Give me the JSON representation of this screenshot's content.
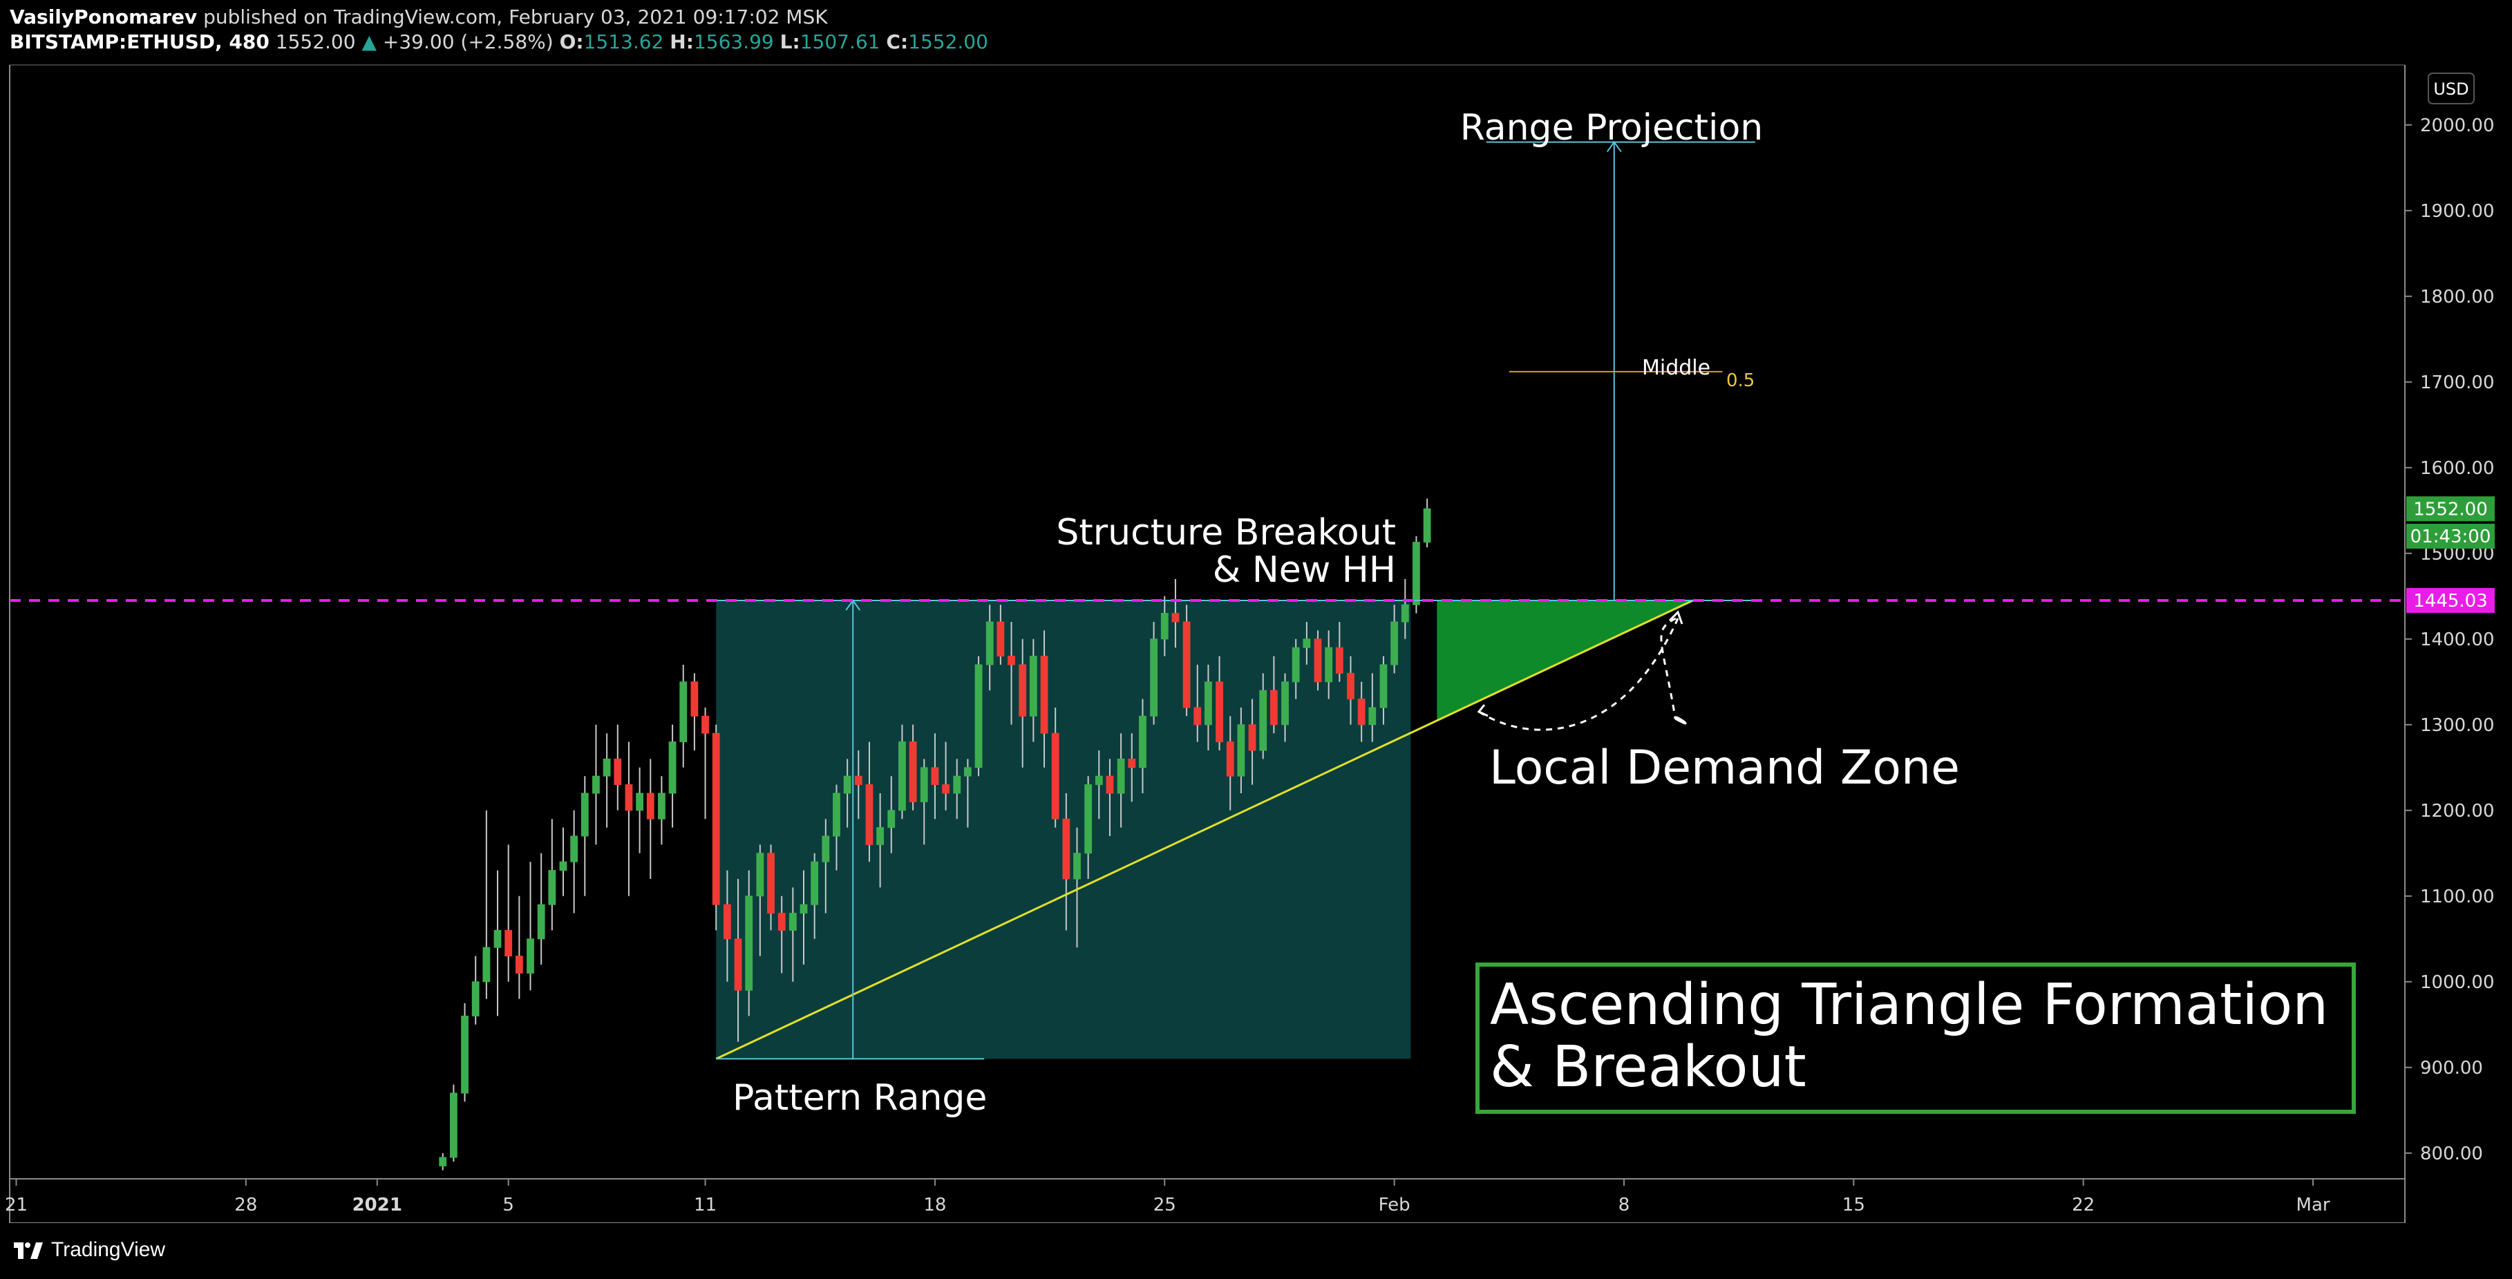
{
  "header": {
    "author": "VasilyPonomarev",
    "published_text": "published on TradingView.com, February 03, 2021 09:17:02 MSK",
    "symbol": "BITSTAMP:ETHUSD, 480",
    "price": "1552.00",
    "change_arrow": "▲",
    "change": "+39.00 (+2.58%)",
    "ohlc": [
      {
        "label": "O:",
        "value": "1513.62"
      },
      {
        "label": "H:",
        "value": "1563.99"
      },
      {
        "label": "L:",
        "value": "1507.61"
      },
      {
        "label": "C:",
        "value": "1552.00"
      }
    ]
  },
  "footer": {
    "brand": "TradingView",
    "logo_icon": "tradingview-logo-icon"
  },
  "colors": {
    "up": "#26a69a",
    "up_body": "#3dae4f",
    "down_body": "#ef3b34",
    "pattern_fill": "#0b3d3c",
    "cyan": "#5bc4d8",
    "magenta": "#e81ee8",
    "yellow": "#e0e02a",
    "demand_green": "#0f8a2a",
    "box_border": "#3aa63a",
    "middle_line": "#c8a51d"
  },
  "chart_data": {
    "type": "candlestick",
    "currency_label": "USD",
    "y_ticks": [
      "2000.00",
      "1900.00",
      "1800.00",
      "1700.00",
      "1600.00",
      "1500.00",
      "1400.00",
      "1300.00",
      "1200.00",
      "1100.00",
      "1000.00",
      "900.00",
      "800.00"
    ],
    "ylim": [
      770,
      2070
    ],
    "x_ticks": [
      {
        "label": "21",
        "x": -21
      },
      {
        "label": "28",
        "x": -14
      },
      {
        "label": "2021",
        "x": -10,
        "bold": true
      },
      {
        "label": "5",
        "x": -6
      },
      {
        "label": "11",
        "x": 0
      },
      {
        "label": "18",
        "x": 7
      },
      {
        "label": "25",
        "x": 14
      },
      {
        "label": "Feb",
        "x": 21
      },
      {
        "label": "8",
        "x": 28
      },
      {
        "label": "15",
        "x": 35
      },
      {
        "label": "22",
        "x": 42
      },
      {
        "label": "Mar",
        "x": 49
      }
    ],
    "xlim": [
      -21.2,
      51.8
    ],
    "x_unit": "days from Jan 11 2021",
    "candles": [
      [
        -8.0,
        785,
        800,
        780,
        795
      ],
      [
        -7.67,
        795,
        880,
        790,
        870
      ],
      [
        -7.33,
        870,
        975,
        860,
        960
      ],
      [
        -7.0,
        960,
        1030,
        950,
        1000
      ],
      [
        -6.67,
        1000,
        1200,
        980,
        1040
      ],
      [
        -6.33,
        1040,
        1130,
        960,
        1060
      ],
      [
        -6.0,
        1060,
        1160,
        1000,
        1030
      ],
      [
        -5.67,
        1030,
        1100,
        980,
        1010
      ],
      [
        -5.33,
        1010,
        1140,
        990,
        1050
      ],
      [
        -5.0,
        1050,
        1150,
        1020,
        1090
      ],
      [
        -4.67,
        1090,
        1190,
        1060,
        1130
      ],
      [
        -4.33,
        1130,
        1180,
        1100,
        1140
      ],
      [
        -4.0,
        1140,
        1200,
        1080,
        1170
      ],
      [
        -3.67,
        1170,
        1240,
        1100,
        1220
      ],
      [
        -3.33,
        1220,
        1300,
        1160,
        1240
      ],
      [
        -3.0,
        1240,
        1290,
        1180,
        1260
      ],
      [
        -2.67,
        1260,
        1300,
        1200,
        1230
      ],
      [
        -2.33,
        1230,
        1280,
        1100,
        1200
      ],
      [
        -2.0,
        1200,
        1250,
        1150,
        1220
      ],
      [
        -1.67,
        1220,
        1260,
        1120,
        1190
      ],
      [
        -1.33,
        1190,
        1240,
        1160,
        1220
      ],
      [
        -1.0,
        1220,
        1300,
        1180,
        1280
      ],
      [
        -0.67,
        1280,
        1370,
        1250,
        1350
      ],
      [
        -0.33,
        1350,
        1360,
        1270,
        1310
      ],
      [
        0.0,
        1310,
        1320,
        1190,
        1290
      ],
      [
        0.33,
        1290,
        1300,
        1060,
        1090
      ],
      [
        0.67,
        1090,
        1130,
        1000,
        1050
      ],
      [
        1.0,
        1050,
        1120,
        930,
        990
      ],
      [
        1.33,
        990,
        1130,
        960,
        1100
      ],
      [
        1.67,
        1100,
        1160,
        1030,
        1150
      ],
      [
        2.0,
        1150,
        1160,
        1060,
        1080
      ],
      [
        2.33,
        1080,
        1100,
        1010,
        1060
      ],
      [
        2.67,
        1060,
        1110,
        1000,
        1080
      ],
      [
        3.0,
        1080,
        1130,
        1020,
        1090
      ],
      [
        3.33,
        1090,
        1150,
        1050,
        1140
      ],
      [
        3.67,
        1140,
        1190,
        1080,
        1170
      ],
      [
        4.0,
        1170,
        1230,
        1130,
        1220
      ],
      [
        4.33,
        1220,
        1260,
        1180,
        1240
      ],
      [
        4.67,
        1240,
        1270,
        1190,
        1230
      ],
      [
        5.0,
        1230,
        1280,
        1140,
        1160
      ],
      [
        5.33,
        1160,
        1220,
        1110,
        1180
      ],
      [
        5.67,
        1180,
        1240,
        1150,
        1200
      ],
      [
        6.0,
        1200,
        1300,
        1190,
        1280
      ],
      [
        6.33,
        1280,
        1300,
        1200,
        1210
      ],
      [
        6.67,
        1210,
        1260,
        1160,
        1250
      ],
      [
        7.0,
        1250,
        1290,
        1190,
        1230
      ],
      [
        7.33,
        1230,
        1280,
        1200,
        1220
      ],
      [
        7.67,
        1220,
        1260,
        1190,
        1240
      ],
      [
        8.0,
        1240,
        1260,
        1180,
        1250
      ],
      [
        8.33,
        1250,
        1380,
        1240,
        1370
      ],
      [
        8.67,
        1370,
        1440,
        1340,
        1420
      ],
      [
        9.0,
        1420,
        1440,
        1370,
        1380
      ],
      [
        9.33,
        1380,
        1420,
        1300,
        1370
      ],
      [
        9.67,
        1370,
        1400,
        1250,
        1310
      ],
      [
        10.0,
        1310,
        1400,
        1280,
        1380
      ],
      [
        10.33,
        1380,
        1410,
        1250,
        1290
      ],
      [
        10.67,
        1290,
        1320,
        1180,
        1190
      ],
      [
        11.0,
        1190,
        1220,
        1060,
        1120
      ],
      [
        11.33,
        1120,
        1180,
        1040,
        1150
      ],
      [
        11.67,
        1150,
        1240,
        1120,
        1230
      ],
      [
        12.0,
        1230,
        1270,
        1190,
        1240
      ],
      [
        12.33,
        1240,
        1260,
        1170,
        1220
      ],
      [
        12.67,
        1220,
        1290,
        1180,
        1260
      ],
      [
        13.0,
        1260,
        1290,
        1210,
        1250
      ],
      [
        13.33,
        1250,
        1330,
        1220,
        1310
      ],
      [
        13.67,
        1310,
        1420,
        1300,
        1400
      ],
      [
        14.0,
        1400,
        1450,
        1380,
        1430
      ],
      [
        14.33,
        1430,
        1470,
        1390,
        1420
      ],
      [
        14.67,
        1420,
        1440,
        1310,
        1320
      ],
      [
        15.0,
        1320,
        1370,
        1280,
        1300
      ],
      [
        15.33,
        1300,
        1370,
        1270,
        1350
      ],
      [
        15.67,
        1350,
        1380,
        1270,
        1280
      ],
      [
        16.0,
        1280,
        1310,
        1200,
        1240
      ],
      [
        16.33,
        1240,
        1320,
        1220,
        1300
      ],
      [
        16.67,
        1300,
        1330,
        1230,
        1270
      ],
      [
        17.0,
        1270,
        1360,
        1260,
        1340
      ],
      [
        17.33,
        1340,
        1380,
        1290,
        1300
      ],
      [
        17.67,
        1300,
        1360,
        1280,
        1350
      ],
      [
        18.0,
        1350,
        1400,
        1330,
        1390
      ],
      [
        18.33,
        1390,
        1420,
        1370,
        1400
      ],
      [
        18.67,
        1400,
        1410,
        1340,
        1350
      ],
      [
        19.0,
        1350,
        1410,
        1330,
        1390
      ],
      [
        19.33,
        1390,
        1420,
        1350,
        1360
      ],
      [
        19.67,
        1360,
        1380,
        1300,
        1330
      ],
      [
        20.0,
        1330,
        1350,
        1280,
        1300
      ],
      [
        20.33,
        1300,
        1360,
        1280,
        1320
      ],
      [
        20.67,
        1320,
        1380,
        1300,
        1370
      ],
      [
        21.0,
        1370,
        1440,
        1360,
        1420
      ],
      [
        21.33,
        1420,
        1470,
        1400,
        1440
      ],
      [
        21.67,
        1440,
        1520,
        1430,
        1513
      ],
      [
        22.0,
        1513,
        1564,
        1507,
        1552
      ]
    ],
    "levels": [
      {
        "name": "resistance",
        "value": 1445.03,
        "label": "1445.03"
      }
    ],
    "price_tags": [
      {
        "label": "1552.00",
        "value": 1552
      },
      {
        "label": "01:43:00",
        "value": 1520
      }
    ],
    "pattern_range": {
      "x0": 0.33,
      "x1": 21.5,
      "top": 1445,
      "bottom": 910
    },
    "trendline": {
      "x0": 0.33,
      "y0": 910,
      "x1": 30.1,
      "y1": 1445
    },
    "pattern_arrow": {
      "x": 4.5,
      "from": 910,
      "to": 1445
    },
    "pattern_base_line": {
      "x0": 0.33,
      "x1": 8.5,
      "y": 910
    },
    "projection": {
      "x": 27.7,
      "from": 1445,
      "to": 1980,
      "x0": 23.8,
      "x1": 32.0
    },
    "middle": {
      "label": "Middle",
      "value_label": "0.5",
      "y": 1712,
      "x0": 24.5,
      "x1": 31.0
    },
    "demand_zone": {
      "x0": 22.3,
      "x1": 30.1,
      "top": 1445
    },
    "annotations": [
      {
        "text": "Range Projection"
      },
      {
        "text": "Structure Breakout"
      },
      {
        "text": "& New HH"
      },
      {
        "text": "Pattern Range"
      },
      {
        "text": "Local Demand Zone"
      }
    ],
    "title_box": {
      "line1": "Ascending Triangle Formation",
      "line2": "& Breakout"
    }
  }
}
